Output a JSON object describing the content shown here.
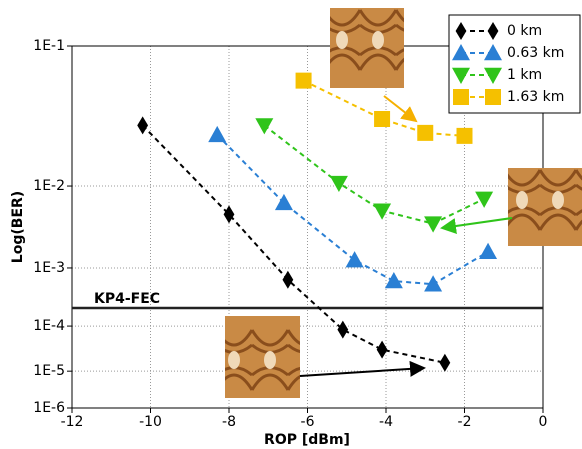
{
  "chart_data": {
    "type": "line",
    "x_label": "ROP [dBm]",
    "y_label": "Log(BER)",
    "yscale": "neg-log-log",
    "xlim": [
      -12,
      0
    ],
    "xticks": [
      -12,
      -10,
      -8,
      -6,
      -4,
      -2,
      0
    ],
    "ylim": [
      1e-06,
      0.1
    ],
    "yticks": [
      {
        "value": 0.1,
        "label": "1E-1"
      },
      {
        "value": 0.01,
        "label": "1E-2"
      },
      {
        "value": 0.001,
        "label": "1E-3"
      },
      {
        "value": 0.0001,
        "label": "1E-4"
      },
      {
        "value": 1e-05,
        "label": "1E-5"
      },
      {
        "value": 1e-06,
        "label": "1E-6"
      }
    ],
    "grid": true,
    "legend": "upper right",
    "threshold": {
      "label": "KP4-FEC",
      "value": 0.00022
    },
    "series": [
      {
        "name": "0 km",
        "color": "#000000",
        "marker": "diamond",
        "x": [
          -10.2,
          -8.0,
          -6.5,
          -5.1,
          -4.1,
          -2.5
        ],
        "values": [
          0.033,
          0.005,
          0.00066,
          8.5e-05,
          3.2e-05,
          1.6e-05
        ]
      },
      {
        "name": "0.63 km",
        "color": "#2a7fd4",
        "marker": "triangle-up",
        "x": [
          -8.3,
          -6.6,
          -4.8,
          -3.8,
          -2.8,
          -1.4
        ],
        "values": [
          0.028,
          0.0067,
          0.0013,
          0.00063,
          0.00056,
          0.0017
        ]
      },
      {
        "name": "1 km",
        "color": "#2fc41a",
        "marker": "triangle-down",
        "x": [
          -7.1,
          -5.2,
          -4.1,
          -2.8,
          -1.5
        ],
        "values": [
          0.033,
          0.0107,
          0.0055,
          0.0039,
          0.0074
        ]
      },
      {
        "name": "1.63 km",
        "color": "#f5c000",
        "marker": "square",
        "x": [
          -6.1,
          -4.1,
          -3.0,
          -2.0
        ],
        "values": [
          0.065,
          0.0367,
          0.029,
          0.0275
        ]
      }
    ]
  }
}
